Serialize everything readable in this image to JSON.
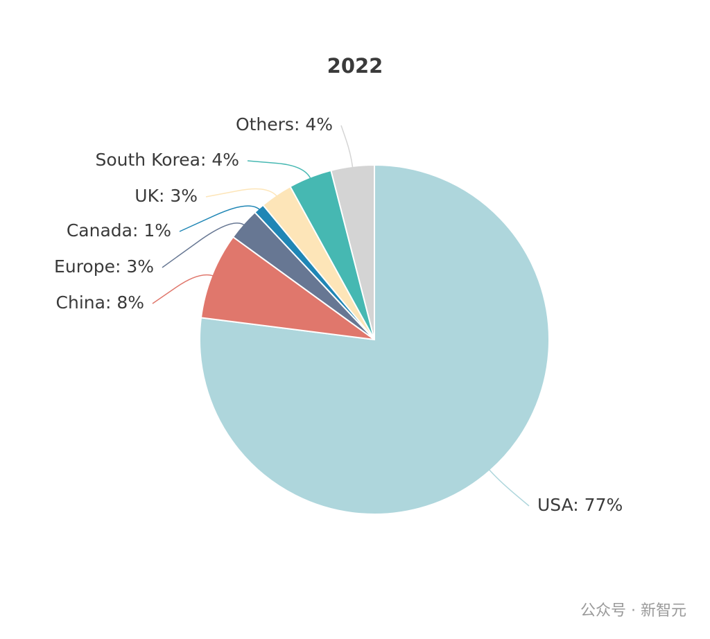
{
  "chart_data": {
    "type": "pie",
    "title": "2022",
    "values": [
      77,
      8,
      3,
      1,
      3,
      4,
      4
    ],
    "value_labels": [
      "USA: 77%",
      "China: 8%",
      "Europe: 3%",
      "Canada: 1%",
      "UK: 3%",
      "South Korea: 4%",
      "Others: 4%"
    ],
    "colors": [
      "#aed6dc",
      "#e0776c",
      "#677793",
      "#1f86b5",
      "#fde5b8",
      "#46b8b2",
      "#d4d4d4"
    ]
  },
  "watermark": "公众号 · 新智元"
}
